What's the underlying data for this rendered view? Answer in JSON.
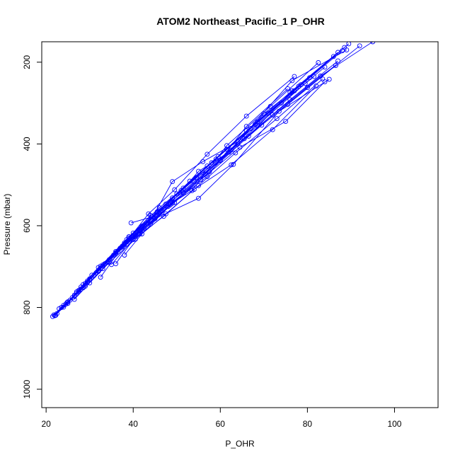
{
  "chart_data": {
    "type": "line",
    "title": "ATOM2 Northeast_Pacific_1 P_OHR",
    "xlabel": "P_OHR",
    "ylabel": "Pressure (mbar)",
    "xlim": [
      19,
      110
    ],
    "ylim": [
      1045,
      150
    ],
    "y_axis_reversed": true,
    "xticks": [
      20,
      40,
      60,
      80,
      100
    ],
    "yticks": [
      200,
      400,
      600,
      800,
      1000
    ],
    "grid": false,
    "legend": "none",
    "marker": "open-circle",
    "series_color": "#0000ff",
    "series": [
      {
        "x": [
          21.8,
          23.5,
          26.5,
          29.5,
          33.5,
          38.5,
          44.5,
          51.5,
          59.5,
          68.5,
          78.5,
          89.5
        ],
        "y": [
          818,
          800,
          772,
          738,
          693,
          640,
          578,
          508,
          431,
          346,
          255,
          155
        ]
      },
      {
        "x": [
          22.0,
          24.0,
          27.0,
          30.0,
          34.5,
          40.0,
          46.5,
          54.0,
          62.5,
          72.0,
          83.0,
          95.0
        ],
        "y": [
          820,
          795,
          765,
          730,
          683,
          626,
          562,
          492,
          415,
          329,
          234,
          150
        ]
      },
      {
        "x": [
          22.5,
          25.0,
          28.0,
          32.0,
          37.0,
          43.0,
          50.0,
          58.0,
          67.0,
          77.0,
          88.0
        ],
        "y": [
          815,
          790,
          755,
          710,
          655,
          593,
          522,
          446,
          362,
          270,
          172
        ]
      },
      {
        "x": [
          21.5,
          24.5,
          27.5,
          31.0,
          36.0,
          42.0,
          49.0,
          57.0,
          66.0,
          76.0,
          87.0
        ],
        "y": [
          822,
          792,
          760,
          722,
          663,
          601,
          532,
          454,
          368,
          274,
          176
        ]
      },
      {
        "x": [
          23.0,
          25.5,
          29.0,
          33.0,
          38.0,
          44.0,
          51.0,
          59.0,
          68.0,
          78.0,
          88.5
        ],
        "y": [
          803,
          782,
          748,
          705,
          647,
          585,
          514,
          437,
          352,
          259,
          164
        ]
      },
      {
        "x": [
          22.2,
          24.8,
          28.5,
          32.5,
          39.0,
          46.0,
          54.5,
          64.0,
          75.5,
          86.5
        ],
        "y": [
          819,
          788,
          752,
          699,
          627,
          556,
          482,
          400,
          303,
          208
        ]
      },
      {
        "x": [
          24.0,
          26.5,
          30.0,
          34.0,
          40.0,
          47.5,
          56.0,
          65.5,
          76.0,
          87.0
        ],
        "y": [
          799,
          770,
          732,
          690,
          618,
          547,
          470,
          387,
          292,
          197
        ]
      },
      {
        "x": [
          25.0,
          28.0,
          32.0,
          37.5,
          44.0,
          51.5,
          60.0,
          69.5,
          80.0,
          92.0
        ],
        "y": [
          786,
          750,
          702,
          650,
          596,
          521,
          441,
          354,
          262,
          160
        ]
      },
      {
        "x": [
          26.0,
          29.5,
          33.5,
          39.0,
          45.5,
          53.0,
          61.5,
          71.0,
          81.5
        ],
        "y": [
          776,
          735,
          693,
          630,
          566,
          491,
          413,
          325,
          235
        ]
      },
      {
        "x": [
          27.0,
          30.5,
          35.5,
          41.5,
          48.5,
          56.5,
          65.0,
          74.0,
          84.0
        ],
        "y": [
          762,
          721,
          672,
          613,
          549,
          474,
          385,
          300,
          212
        ]
      },
      {
        "x": [
          26.5,
          30.0,
          34.5,
          40.5,
          47.5,
          55.0,
          63.5,
          73.0,
          83.5
        ],
        "y": [
          780,
          740,
          690,
          633,
          571,
          502,
          422,
          338,
          241
        ]
      },
      {
        "x": [
          27.5,
          31.5,
          36.5,
          42.5,
          49.5,
          57.5,
          66.5,
          76.5,
          86.0
        ],
        "y": [
          758,
          715,
          664,
          606,
          543,
          468,
          381,
          270,
          186
        ]
      },
      {
        "x": [
          28.5,
          32.5,
          38.0,
          44.0,
          51.5,
          60.0,
          68.5,
          79.5
        ],
        "y": [
          744,
          704,
          642,
          575,
          518,
          440,
          355,
          252
        ]
      },
      {
        "x": [
          29.0,
          33.0,
          38.5,
          45.5,
          53.5,
          61.5,
          71.5,
          82.5
        ],
        "y": [
          741,
          696,
          634,
          567,
          514,
          404,
          308,
          201
        ]
      },
      {
        "x": [
          32.0,
          36.0,
          41.5,
          48.0,
          55.0,
          62.0,
          70.0,
          80.5
        ],
        "y": [
          712,
          666,
          620,
          553,
          467,
          420,
          326,
          238
        ]
      },
      {
        "x": [
          32.5,
          37.5,
          45.0,
          55.0,
          63.0,
          73.5,
          85.0
        ],
        "y": [
          726,
          652,
          583,
          533,
          450,
          320,
          242
        ]
      },
      {
        "x": [
          35.0,
          40.5,
          47.0,
          55.5,
          64.5,
          75.0,
          84.0
        ],
        "y": [
          695,
          627,
          559,
          488,
          408,
          345,
          248
        ]
      },
      {
        "x": [
          36.0,
          40.0,
          47.0,
          54.0,
          62.5,
          72.0,
          82.0
        ],
        "y": [
          693,
          634,
          577,
          511,
          451,
          365,
          258
        ]
      },
      {
        "x": [
          38.0,
          42.0,
          49.0,
          57.0,
          66.0,
          75.5
        ],
        "y": [
          672,
          620,
          545,
          480,
          357,
          265
        ]
      },
      {
        "x": [
          39.5,
          44.5,
          49.0,
          56.0,
          64.0,
          76.5,
          89.0
        ],
        "y": [
          593,
          578,
          492,
          443,
          395,
          245,
          170
        ]
      },
      {
        "x": [
          38.0,
          43.5,
          49.5,
          57.0,
          66.0,
          77.0
        ],
        "y": [
          645,
          571,
          512,
          425,
          332,
          235
        ]
      }
    ]
  }
}
